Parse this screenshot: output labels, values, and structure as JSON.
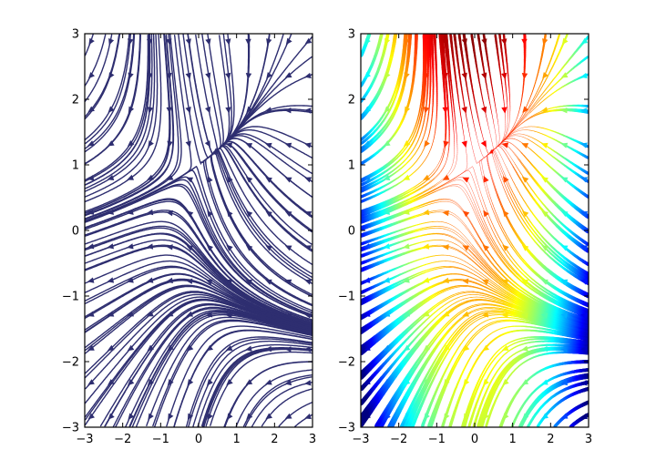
{
  "chart_data": [
    {
      "type": "streamplot",
      "panel": "left",
      "title": "",
      "xlabel": "",
      "ylabel": "",
      "xlim": [
        -3,
        3
      ],
      "ylim": [
        -3,
        3
      ],
      "xticks": [
        "−3",
        "−2",
        "−1",
        "0",
        "1",
        "2",
        "3"
      ],
      "yticks": [
        "−3",
        "−2",
        "−1",
        "0",
        "1",
        "2",
        "3"
      ],
      "grid": false,
      "legend": "none",
      "colormap": "none",
      "line_color": "#2e2e70",
      "field": {
        "u": "-1 - x^2 + y",
        "v": "1 + x - y^2"
      }
    },
    {
      "type": "streamplot",
      "panel": "right",
      "title": "",
      "xlabel": "",
      "ylabel": "",
      "xlim": [
        -3,
        3
      ],
      "ylim": [
        -3,
        3
      ],
      "xticks": [
        "−3",
        "−2",
        "−1",
        "0",
        "1",
        "2",
        "3"
      ],
      "yticks": [
        "−3",
        "−2",
        "−1",
        "0",
        "1",
        "2",
        "3"
      ],
      "grid": false,
      "legend": "none",
      "colormap": "jet (colour by u, width by speed)",
      "field": {
        "u": "-1 - x^2 + y",
        "v": "1 + x - y^2"
      }
    }
  ]
}
